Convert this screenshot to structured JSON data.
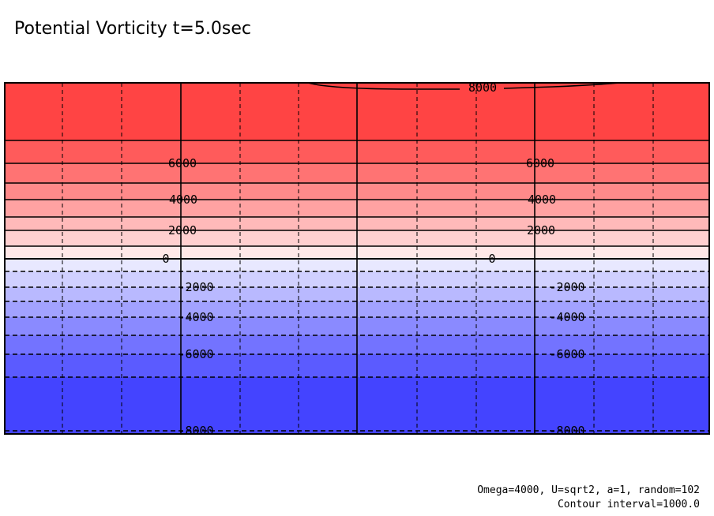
{
  "chart_data": {
    "type": "contour",
    "title": "Potential Vorticity t=5.0sec",
    "colormap": "blue-white-red",
    "color_min": "#4444ff",
    "color_max": "#ff4444",
    "contour_interval": 1000,
    "levels": [
      -8000,
      -7000,
      -6000,
      -5000,
      -4000,
      -3000,
      -2000,
      -1000,
      0,
      1000,
      2000,
      3000,
      4000,
      5000,
      6000,
      7000,
      8000
    ],
    "negative_contours": "dashed",
    "positive_contours": "solid",
    "contour_labels": [
      {
        "value": 8000,
        "text": "8000"
      },
      {
        "value": 6000,
        "text": "6000"
      },
      {
        "value": 4000,
        "text": "4000"
      },
      {
        "value": 2000,
        "text": "2000"
      },
      {
        "value": 0,
        "text": "0"
      },
      {
        "value": -2000,
        "text": "-2000"
      },
      {
        "value": -4000,
        "text": "-4000"
      },
      {
        "value": -6000,
        "text": "-6000"
      },
      {
        "value": -8000,
        "text": "-8000"
      }
    ],
    "grid": true,
    "footer": [
      "Omega=4000, U=sqrt2, a=1, random=102",
      "Contour interval=1000.0"
    ]
  }
}
